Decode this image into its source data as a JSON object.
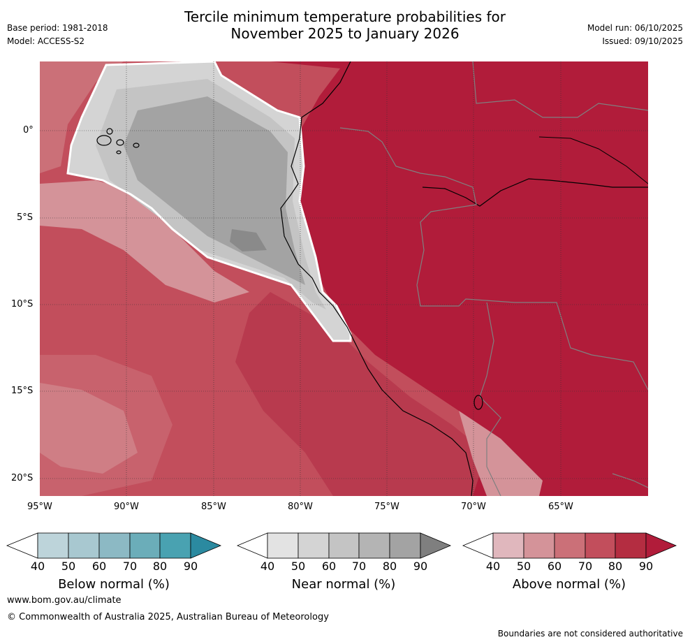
{
  "title": {
    "line1": "Tercile minimum temperature probabilities for",
    "line2": "November 2025 to January 2026"
  },
  "header": {
    "base_period": "Base period: 1981-2018",
    "model": "Model: ACCESS-S2",
    "model_run": "Model run: 06/10/2025",
    "issued": "Issued: 09/10/2025"
  },
  "axes": {
    "lat_labels": [
      "0°",
      "5°S",
      "10°S",
      "15°S",
      "20°S"
    ],
    "lon_labels": [
      "95°W",
      "90°W",
      "85°W",
      "80°W",
      "75°W",
      "70°W",
      "65°W"
    ]
  },
  "colorbars": [
    {
      "name": "below",
      "label": "Below normal (%)",
      "ticks": [
        "40",
        "50",
        "60",
        "70",
        "80",
        "90"
      ],
      "colors": [
        "#ffffff",
        "#bdd4da",
        "#a8c8d0",
        "#8cb9c4",
        "#6badb9",
        "#49a2b1",
        "#2b8aa0"
      ]
    },
    {
      "name": "near",
      "label": "Near normal (%)",
      "ticks": [
        "40",
        "50",
        "60",
        "70",
        "80",
        "90"
      ],
      "colors": [
        "#ffffff",
        "#e3e3e3",
        "#d4d4d4",
        "#c4c4c4",
        "#b4b4b4",
        "#a3a3a3",
        "#7f7f7f"
      ]
    },
    {
      "name": "above",
      "label": "Above normal (%)",
      "ticks": [
        "40",
        "50",
        "60",
        "70",
        "80",
        "90"
      ],
      "colors": [
        "#ffffff",
        "#e0b7bd",
        "#d49399",
        "#cb7078",
        "#c24e5c",
        "#b42d41",
        "#b11c3a"
      ]
    }
  ],
  "map_colors": {
    "ocean_above_40": "#d49399",
    "above_50": "#cb7078",
    "above_60": "#c24e5c",
    "above_70": "#b83a4e",
    "above_80": "#b11c3a",
    "near_50": "#d4d4d4",
    "near_60": "#c4c4c4",
    "near_70": "#a3a3a3",
    "near_80": "#8a8a8a"
  },
  "footer": {
    "url": "www.bom.gov.au/climate",
    "copyright": "© Commonwealth of Australia 2025, Australian Bureau of Meteorology",
    "disclaimer": "Boundaries are not considered authoritative"
  }
}
